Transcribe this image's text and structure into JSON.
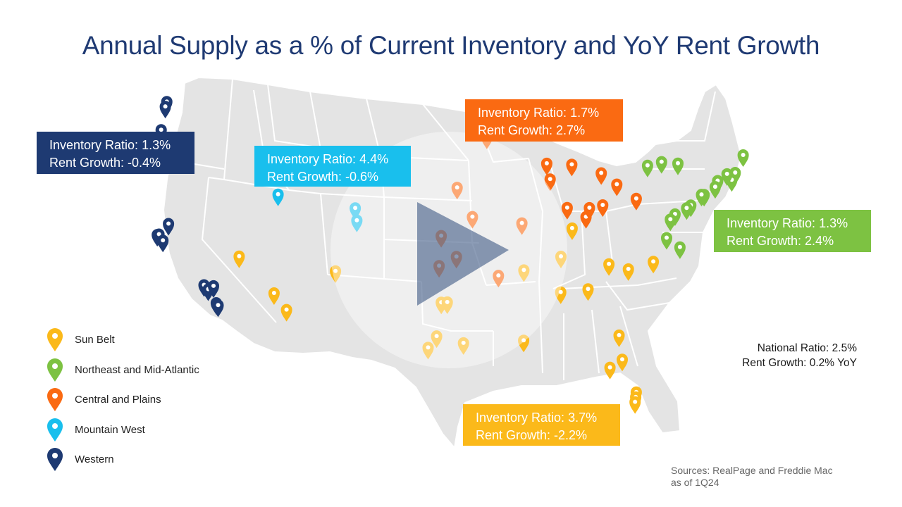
{
  "title": "Annual Supply as a % of Current Inventory and YoY Rent Growth",
  "colors": {
    "sun_belt": "#fbb91a",
    "northeast": "#7dc242",
    "central": "#fa6a12",
    "mountain": "#19bfed",
    "western": "#1e3a72",
    "map_fill": "#e4e4e4",
    "map_stroke": "#ffffff"
  },
  "callouts": {
    "western": {
      "line1": "Inventory Ratio: 1.3%",
      "line2": "Rent Growth: -0.4%"
    },
    "mountain": {
      "line1": "Inventory Ratio: 4.4%",
      "line2": "Rent Growth: -0.6%"
    },
    "central": {
      "line1": "Inventory Ratio: 1.7%",
      "line2": "Rent Growth: 2.7%"
    },
    "northeast": {
      "line1": "Inventory Ratio: 1.3%",
      "line2": "Rent Growth: 2.4%"
    },
    "sunbelt": {
      "line1": "Inventory Ratio: 3.7%",
      "line2": "Rent Growth: -2.2%"
    }
  },
  "legend": [
    {
      "label": "Sun Belt",
      "region": "sun_belt"
    },
    {
      "label": "Northeast and Mid-Atlantic",
      "region": "northeast"
    },
    {
      "label": "Central and Plains",
      "region": "central"
    },
    {
      "label": "Mountain West",
      "region": "mountain"
    },
    {
      "label": "Western",
      "region": "western"
    }
  ],
  "national": {
    "ratio": "National Ratio: 2.5%",
    "rent_growth": "Rent Growth: 0.2% YoY"
  },
  "sources": {
    "line1": "Sources: RealPage and Freddie Mac",
    "line2": "as of 1Q24"
  },
  "markers": [
    {
      "region": "western",
      "lon": -122.33,
      "lat": 47.61
    },
    {
      "region": "western",
      "lon": -122.44,
      "lat": 47.25
    },
    {
      "region": "western",
      "lon": -122.68,
      "lat": 45.52
    },
    {
      "region": "western",
      "lon": -122.42,
      "lat": 37.77
    },
    {
      "region": "western",
      "lon": -122.27,
      "lat": 37.8
    },
    {
      "region": "western",
      "lon": -121.89,
      "lat": 37.34
    },
    {
      "region": "western",
      "lon": -121.49,
      "lat": 38.58
    },
    {
      "region": "western",
      "lon": -118.24,
      "lat": 34.05
    },
    {
      "region": "western",
      "lon": -117.87,
      "lat": 33.74
    },
    {
      "region": "western",
      "lon": -117.4,
      "lat": 33.98
    },
    {
      "region": "western",
      "lon": -117.16,
      "lat": 32.72
    },
    {
      "region": "western",
      "lon": -117.0,
      "lat": 32.55
    },
    {
      "region": "mountain",
      "lon": -111.89,
      "lat": 40.76
    },
    {
      "region": "mountain",
      "lon": -104.99,
      "lat": 39.74
    },
    {
      "region": "mountain",
      "lon": -104.82,
      "lat": 38.83
    },
    {
      "region": "sun_belt",
      "lon": -115.14,
      "lat": 36.17
    },
    {
      "region": "sun_belt",
      "lon": -112.07,
      "lat": 33.45
    },
    {
      "region": "sun_belt",
      "lon": -110.97,
      "lat": 32.22
    },
    {
      "region": "sun_belt",
      "lon": -106.65,
      "lat": 35.08
    },
    {
      "region": "sun_belt",
      "lon": -97.33,
      "lat": 32.76
    },
    {
      "region": "sun_belt",
      "lon": -96.8,
      "lat": 32.78
    },
    {
      "region": "sun_belt",
      "lon": -97.74,
      "lat": 30.27
    },
    {
      "region": "sun_belt",
      "lon": -98.49,
      "lat": 29.42
    },
    {
      "region": "sun_belt",
      "lon": -95.37,
      "lat": 29.76
    },
    {
      "region": "sun_belt",
      "lon": -90.07,
      "lat": 29.95
    },
    {
      "region": "sun_belt",
      "lon": -90.05,
      "lat": 35.15
    },
    {
      "region": "sun_belt",
      "lon": -86.78,
      "lat": 36.16
    },
    {
      "region": "sun_belt",
      "lon": -85.76,
      "lat": 38.25
    },
    {
      "region": "sun_belt",
      "lon": -86.8,
      "lat": 33.52
    },
    {
      "region": "sun_belt",
      "lon": -84.39,
      "lat": 33.75
    },
    {
      "region": "sun_belt",
      "lon": -82.55,
      "lat": 35.6
    },
    {
      "region": "sun_belt",
      "lon": -80.84,
      "lat": 35.23
    },
    {
      "region": "sun_belt",
      "lon": -78.64,
      "lat": 35.78
    },
    {
      "region": "sun_belt",
      "lon": -81.66,
      "lat": 30.33
    },
    {
      "region": "sun_belt",
      "lon": -81.38,
      "lat": 28.54
    },
    {
      "region": "sun_belt",
      "lon": -82.46,
      "lat": 27.95
    },
    {
      "region": "sun_belt",
      "lon": -80.14,
      "lat": 26.12
    },
    {
      "region": "sun_belt",
      "lon": -80.19,
      "lat": 25.76
    },
    {
      "region": "sun_belt",
      "lon": -80.25,
      "lat": 25.4
    },
    {
      "region": "central",
      "lon": -93.27,
      "lat": 44.98
    },
    {
      "region": "central",
      "lon": -95.94,
      "lat": 41.26
    },
    {
      "region": "central",
      "lon": -94.58,
      "lat": 39.1
    },
    {
      "region": "central",
      "lon": -97.34,
      "lat": 37.69
    },
    {
      "region": "central",
      "lon": -97.52,
      "lat": 35.47
    },
    {
      "region": "central",
      "lon": -95.99,
      "lat": 36.15
    },
    {
      "region": "central",
      "lon": -92.29,
      "lat": 34.75
    },
    {
      "region": "central",
      "lon": -90.2,
      "lat": 38.63
    },
    {
      "region": "central",
      "lon": -87.63,
      "lat": 41.88
    },
    {
      "region": "central",
      "lon": -87.91,
      "lat": 43.04
    },
    {
      "region": "central",
      "lon": -86.16,
      "lat": 39.77
    },
    {
      "region": "central",
      "lon": -84.51,
      "lat": 39.1
    },
    {
      "region": "central",
      "lon": -84.19,
      "lat": 39.76
    },
    {
      "region": "central",
      "lon": -83.0,
      "lat": 39.96
    },
    {
      "region": "central",
      "lon": -81.69,
      "lat": 41.5
    },
    {
      "region": "central",
      "lon": -83.05,
      "lat": 42.33
    },
    {
      "region": "central",
      "lon": -85.67,
      "lat": 42.96
    },
    {
      "region": "central",
      "lon": -80.0,
      "lat": 40.44
    },
    {
      "region": "northeast",
      "lon": -78.88,
      "lat": 42.89
    },
    {
      "region": "northeast",
      "lon": -77.61,
      "lat": 43.16
    },
    {
      "region": "northeast",
      "lon": -76.15,
      "lat": 43.05
    },
    {
      "region": "northeast",
      "lon": -70.26,
      "lat": 43.66
    },
    {
      "region": "northeast",
      "lon": -71.06,
      "lat": 42.36
    },
    {
      "region": "northeast",
      "lon": -71.41,
      "lat": 41.82
    },
    {
      "region": "northeast",
      "lon": -71.8,
      "lat": 42.26
    },
    {
      "region": "northeast",
      "lon": -72.67,
      "lat": 41.76
    },
    {
      "region": "northeast",
      "lon": -72.92,
      "lat": 41.31
    },
    {
      "region": "northeast",
      "lon": -73.94,
      "lat": 40.73
    },
    {
      "region": "northeast",
      "lon": -74.17,
      "lat": 40.74
    },
    {
      "region": "northeast",
      "lon": -75.17,
      "lat": 39.95
    },
    {
      "region": "northeast",
      "lon": -75.55,
      "lat": 39.74
    },
    {
      "region": "northeast",
      "lon": -76.61,
      "lat": 39.29
    },
    {
      "region": "northeast",
      "lon": -77.04,
      "lat": 38.91
    },
    {
      "region": "northeast",
      "lon": -77.44,
      "lat": 37.54
    },
    {
      "region": "northeast",
      "lon": -76.29,
      "lat": 36.85
    }
  ]
}
